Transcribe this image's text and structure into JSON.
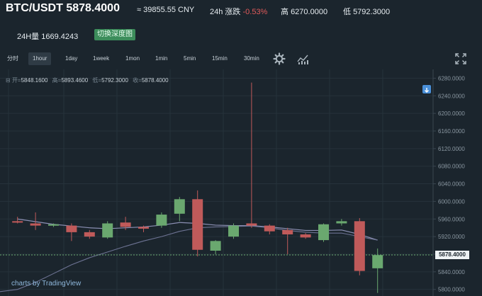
{
  "header": {
    "pair": "BTC/USDT 5878.4000",
    "cny": "≈ 39855.55 CNY",
    "change_label": "24h 涨跌",
    "change_value": "-0.53%",
    "high_label": "高",
    "high_value": "6270.0000",
    "low_label": "低",
    "low_value": "5792.3000",
    "volume": "24H量 1669.4243",
    "depth_button": "切换深度图"
  },
  "toolbar": {
    "timeframes": [
      "分时",
      "1hour",
      "1day",
      "1week",
      "1mon",
      "1min",
      "5min",
      "15min",
      "30min"
    ],
    "active": "1hour",
    "icons": [
      "gear-icon",
      "indicators-icon",
      "fullscreen-icon"
    ]
  },
  "ohlc": {
    "open_label": "开=",
    "open": "5848.1600",
    "high_label": "高=",
    "high": "5893.4600",
    "low_label": "低=",
    "low": "5792.3000",
    "close_label": "收=",
    "close": "5878.4000"
  },
  "watermark": "charts by TradingView",
  "colors": {
    "background": "#1b252d",
    "up": "#6aa86f",
    "down": "#c05a5a",
    "ma": "#8c90b4",
    "accent": "#3c8d5b"
  },
  "chart_data": {
    "type": "candlestick",
    "y_ticks": [
      "6280.0000",
      "6240.0000",
      "6200.0000",
      "6160.0000",
      "6120.0000",
      "6080.0000",
      "6040.0000",
      "6000.0000",
      "5960.0000",
      "5920.0000",
      "5880.0000",
      "5840.0000",
      "5800.0000"
    ],
    "ylim": [
      5785,
      6300
    ],
    "last_price": "5878.4000",
    "candles": [
      {
        "o": 5955,
        "h": 5965,
        "l": 5950,
        "c": 5952
      },
      {
        "o": 5950,
        "h": 5975,
        "l": 5935,
        "c": 5945
      },
      {
        "o": 5945,
        "h": 5950,
        "l": 5942,
        "c": 5948
      },
      {
        "o": 5945,
        "h": 5950,
        "l": 5910,
        "c": 5930
      },
      {
        "o": 5930,
        "h": 5935,
        "l": 5915,
        "c": 5920
      },
      {
        "o": 5918,
        "h": 5955,
        "l": 5915,
        "c": 5950
      },
      {
        "o": 5952,
        "h": 5965,
        "l": 5935,
        "c": 5942
      },
      {
        "o": 5942,
        "h": 5945,
        "l": 5930,
        "c": 5938
      },
      {
        "o": 5945,
        "h": 5975,
        "l": 5940,
        "c": 5970
      },
      {
        "o": 5972,
        "h": 6010,
        "l": 5955,
        "c": 6005
      },
      {
        "o": 6005,
        "h": 6025,
        "l": 5875,
        "c": 5890
      },
      {
        "o": 5888,
        "h": 5912,
        "l": 5880,
        "c": 5910
      },
      {
        "o": 5920,
        "h": 5950,
        "l": 5915,
        "c": 5945
      },
      {
        "o": 5950,
        "h": 6270,
        "l": 5940,
        "c": 5945
      },
      {
        "o": 5945,
        "h": 5948,
        "l": 5925,
        "c": 5932
      },
      {
        "o": 5935,
        "h": 5940,
        "l": 5880,
        "c": 5925
      },
      {
        "o": 5925,
        "h": 5928,
        "l": 5915,
        "c": 5918
      },
      {
        "o": 5912,
        "h": 5950,
        "l": 5908,
        "c": 5948
      },
      {
        "o": 5950,
        "h": 5960,
        "l": 5945,
        "c": 5955
      },
      {
        "o": 5955,
        "h": 5962,
        "l": 5832,
        "c": 5842
      },
      {
        "o": 5848,
        "h": 5893,
        "l": 5792,
        "c": 5878
      }
    ],
    "ma": [
      5960,
      5954,
      5948,
      5944,
      5940,
      5938,
      5940,
      5942,
      5946,
      5952,
      5950,
      5946,
      5945,
      5945,
      5942,
      5938,
      5934,
      5934,
      5935,
      5925,
      5912
    ],
    "ma2": [
      5800,
      5816,
      5836,
      5856,
      5872,
      5885,
      5898,
      5910,
      5920,
      5932,
      5940,
      5942,
      5943,
      5944,
      5940,
      5934,
      5930,
      5928,
      5928,
      5920,
      5912
    ]
  }
}
